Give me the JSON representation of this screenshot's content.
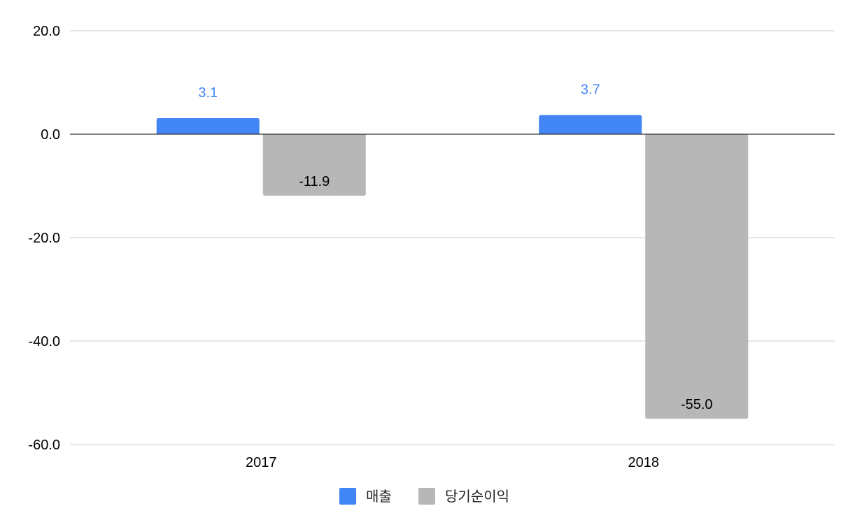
{
  "chart_data": {
    "type": "bar",
    "categories": [
      "2017",
      "2018"
    ],
    "series": [
      {
        "name": "매출",
        "values": [
          3.1,
          3.7
        ],
        "color": "#4285f4",
        "label_color": "#4285f4"
      },
      {
        "name": "당기순이익",
        "values": [
          -11.9,
          -55.0
        ],
        "color": "#b7b7b7",
        "label_color": "#000000"
      }
    ],
    "data_labels": {
      "매출": [
        "3.1",
        "3.7"
      ],
      "당기순이익": [
        "-11.9",
        "-55.0"
      ]
    },
    "y_ticks": [
      20.0,
      0.0,
      -20.0,
      -40.0,
      -60.0
    ],
    "y_tick_labels": [
      "20.0",
      "0.0",
      "-20.0",
      "-40.0",
      "-60.0"
    ],
    "ylim": [
      -60,
      20
    ],
    "grid": true,
    "legend_position": "bottom",
    "title": "",
    "xlabel": "",
    "ylabel": ""
  }
}
